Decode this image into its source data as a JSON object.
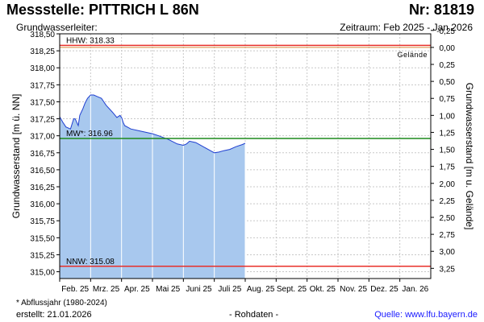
{
  "header": {
    "title": "Messstelle: PITTRICH L 86N",
    "number": "Nr: 81819",
    "subtitle": "Grundwasserleiter:",
    "period": "Zeitraum: Feb 2025 - Jan 2026"
  },
  "footer": {
    "note": "* Abflussjahr (1980-2024)",
    "created": "erstellt:  21.01.2026",
    "status": "- Rohdaten -",
    "source": "Quelle: www.lfu.bayern.de"
  },
  "colors": {
    "fill": "#a8c8ee",
    "line": "#1f3fd0",
    "hhw": "#e8302a",
    "nnw": "#e8302a",
    "mw": "#1d8a1d",
    "gelaende": "#d88a3a",
    "grid": "#c8c8c8",
    "month_line": "#ffffff"
  },
  "chart_data": {
    "type": "area",
    "ylabel": "Grundwasserstand [m ü. NN]",
    "ylabel_right": "Grundwasserstand [m u. Gelände]",
    "ylim": [
      314.9,
      318.5
    ],
    "yticks": [
      "318,50",
      "318,25",
      "318,00",
      "317,75",
      "317,50",
      "317,25",
      "317,00",
      "316,75",
      "316,50",
      "316,25",
      "316,00",
      "315,75",
      "315,50",
      "315,25",
      "315,00"
    ],
    "ytick_values": [
      318.5,
      318.25,
      318.0,
      317.75,
      317.5,
      317.25,
      317.0,
      316.75,
      316.5,
      316.25,
      316.0,
      315.75,
      315.5,
      315.25,
      315.0
    ],
    "right_ticks": [
      "-0,25",
      "0,00",
      "0,25",
      "0,50",
      "0,75",
      "1,00",
      "1,25",
      "1,50",
      "1,75",
      "2,00",
      "2,25",
      "2,50",
      "2,75",
      "3,00",
      "3,25"
    ],
    "right_tick_values": [
      -0.25,
      0.0,
      0.25,
      0.5,
      0.75,
      1.0,
      1.25,
      1.5,
      1.75,
      2.0,
      2.25,
      2.5,
      2.75,
      3.0,
      3.25
    ],
    "gelaende_elevation": 318.3,
    "xlim": [
      0,
      12
    ],
    "month_labels": [
      "Feb. 25",
      "Mrz. 25",
      "Apr. 25",
      "Mai 25",
      "Juni 25",
      "Juli 25",
      "Aug. 25",
      "Sept. 25",
      "Okt. 25",
      "Nov. 25",
      "Dez. 25",
      "Jan. 26"
    ],
    "series": [
      {
        "values_x": [
          0.0,
          0.1,
          0.2,
          0.35,
          0.45,
          0.5,
          0.55,
          0.6,
          0.65,
          0.75,
          0.82,
          0.9,
          1.0,
          1.1,
          1.2,
          1.35,
          1.5,
          1.7,
          1.85,
          1.95,
          2.0,
          2.05,
          2.1,
          2.3,
          2.6,
          3.0,
          3.2,
          3.5,
          3.8,
          4.0,
          4.1,
          4.2,
          4.4,
          4.6,
          4.8,
          5.0,
          5.15,
          5.3,
          5.5,
          5.7,
          5.9,
          6.0
        ],
        "values": [
          317.28,
          317.2,
          317.13,
          317.1,
          317.25,
          317.25,
          317.2,
          317.15,
          317.3,
          317.4,
          317.48,
          317.55,
          317.6,
          317.6,
          317.58,
          317.55,
          317.45,
          317.35,
          317.27,
          317.3,
          317.27,
          317.2,
          317.15,
          317.1,
          317.07,
          317.03,
          317.0,
          316.95,
          316.88,
          316.86,
          316.88,
          316.92,
          316.9,
          316.85,
          316.8,
          316.75,
          316.76,
          316.78,
          316.8,
          316.84,
          316.87,
          316.89
        ]
      }
    ],
    "reference_lines": [
      {
        "label": "HHW: 318.33",
        "value": 318.33,
        "kind": "hhw"
      },
      {
        "label": "MW*: 316.96",
        "value": 316.96,
        "kind": "mw"
      },
      {
        "label": "NNW: 315.08",
        "value": 315.08,
        "kind": "nnw"
      }
    ],
    "gelaende_label": "Gelände",
    "grid": true
  }
}
